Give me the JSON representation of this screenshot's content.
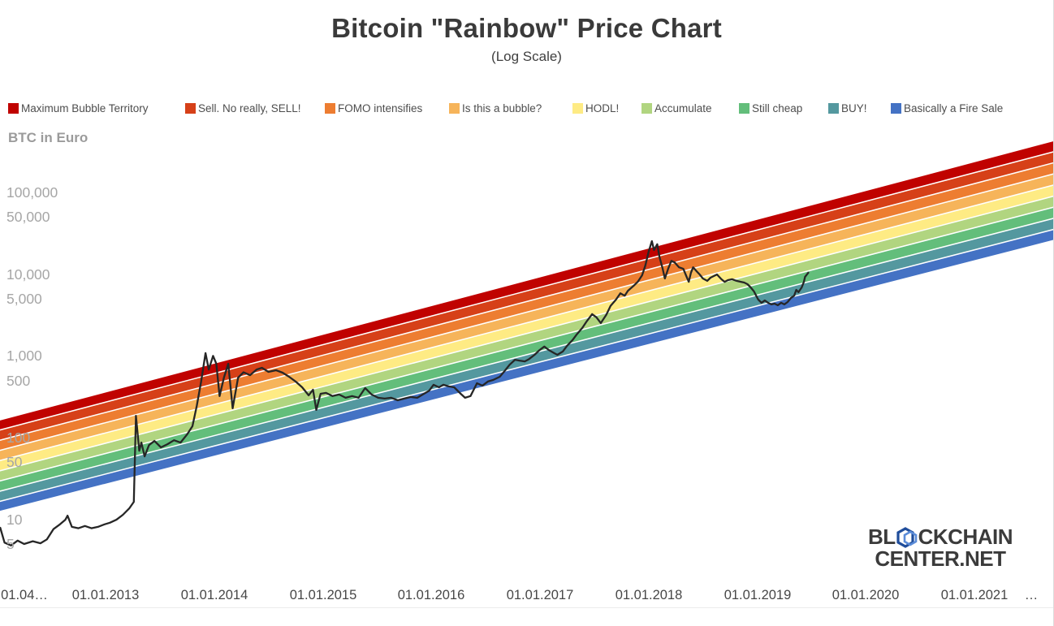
{
  "title": "Bitcoin \"Rainbow\" Price Chart",
  "subtitle": "(Log Scale)",
  "watermark": {
    "line1_pre": "BL",
    "line1_post": "CKCHAIN",
    "line2": "CENTER.NET"
  },
  "chart_data": {
    "type": "line",
    "title": "Bitcoin \"Rainbow\" Price Chart",
    "subtitle": "(Log Scale)",
    "ylabel": "BTC in Euro",
    "y_scale": "log",
    "grid": false,
    "legend_position": "top",
    "line_color": "#262626",
    "y_ticks": [
      {
        "label": "100,000",
        "value": 100000
      },
      {
        "label": "50,000",
        "value": 50000
      },
      {
        "label": "10,000",
        "value": 10000
      },
      {
        "label": "5,000",
        "value": 5000
      },
      {
        "label": "1,000",
        "value": 1000
      },
      {
        "label": "500",
        "value": 500
      },
      {
        "label": "100",
        "value": 100
      },
      {
        "label": "50",
        "value": 50
      },
      {
        "label": "10",
        "value": 10
      },
      {
        "label": "5",
        "value": 5
      }
    ],
    "x_ticks": [
      {
        "label": "01.04…",
        "t": 2012.25
      },
      {
        "label": "01.01.2013",
        "t": 2013
      },
      {
        "label": "01.01.2014",
        "t": 2014
      },
      {
        "label": "01.01.2015",
        "t": 2015
      },
      {
        "label": "01.01.2016",
        "t": 2016
      },
      {
        "label": "01.01.2017",
        "t": 2017
      },
      {
        "label": "01.01.2018",
        "t": 2018
      },
      {
        "label": "01.01.2019",
        "t": 2019
      },
      {
        "label": "01.01.2020",
        "t": 2020
      },
      {
        "label": "01.01.2021",
        "t": 2021
      },
      {
        "label": "…",
        "t": 2021.52
      }
    ],
    "bands": [
      {
        "label": "Maximum Bubble Territory",
        "color": "#c00200"
      },
      {
        "label": "Sell. No really, SELL!",
        "color": "#d64018"
      },
      {
        "label": "FOMO intensifies",
        "color": "#ed7d31"
      },
      {
        "label": "Is this a bubble?",
        "color": "#f6b45a"
      },
      {
        "label": "HODL!",
        "color": "#feeb84"
      },
      {
        "label": "Accumulate",
        "color": "#b1d580"
      },
      {
        "label": "Still cheap",
        "color": "#63be7b"
      },
      {
        "label": "BUY!",
        "color": "#54989f"
      },
      {
        "label": "Basically a Fire Sale",
        "color": "#4472c4"
      }
    ],
    "band_envelope": {
      "t_start": 2012.028,
      "t_end": 2021.732,
      "top_start_eur": 165,
      "top_end_eur": 430000,
      "bottom_start_eur": 12.5,
      "bottom_end_eur": 25800
    },
    "series_name": "BTC price in EUR",
    "series": [
      [
        2012.03,
        7.9
      ],
      [
        2012.07,
        5.2
      ],
      [
        2012.13,
        4.8
      ],
      [
        2012.19,
        5.5
      ],
      [
        2012.25,
        5.0
      ],
      [
        2012.33,
        5.4
      ],
      [
        2012.4,
        5.1
      ],
      [
        2012.46,
        5.7
      ],
      [
        2012.52,
        7.6
      ],
      [
        2012.58,
        8.7
      ],
      [
        2012.63,
        9.9
      ],
      [
        2012.65,
        11.1
      ],
      [
        2012.69,
        8.1
      ],
      [
        2012.75,
        7.8
      ],
      [
        2012.81,
        8.3
      ],
      [
        2012.87,
        7.8
      ],
      [
        2012.93,
        8.1
      ],
      [
        2012.99,
        8.7
      ],
      [
        2013.04,
        9.1
      ],
      [
        2013.1,
        9.9
      ],
      [
        2013.16,
        11.4
      ],
      [
        2013.22,
        13.7
      ],
      [
        2013.26,
        16.4
      ],
      [
        2013.28,
        185
      ],
      [
        2013.31,
        69
      ],
      [
        2013.33,
        87
      ],
      [
        2013.36,
        59
      ],
      [
        2013.4,
        81
      ],
      [
        2013.45,
        91
      ],
      [
        2013.51,
        76
      ],
      [
        2013.57,
        83
      ],
      [
        2013.63,
        93
      ],
      [
        2013.69,
        87
      ],
      [
        2013.75,
        109
      ],
      [
        2013.8,
        138
      ],
      [
        2013.84,
        244
      ],
      [
        2013.88,
        485
      ],
      [
        2013.92,
        1080
      ],
      [
        2013.95,
        680
      ],
      [
        2013.99,
        1000
      ],
      [
        2014.02,
        800
      ],
      [
        2014.05,
        322
      ],
      [
        2014.09,
        543
      ],
      [
        2014.13,
        800
      ],
      [
        2014.17,
        228
      ],
      [
        2014.22,
        540
      ],
      [
        2014.27,
        630
      ],
      [
        2014.33,
        580
      ],
      [
        2014.39,
        680
      ],
      [
        2014.44,
        715
      ],
      [
        2014.5,
        637
      ],
      [
        2014.57,
        667
      ],
      [
        2014.63,
        623
      ],
      [
        2014.69,
        556
      ],
      [
        2014.75,
        485
      ],
      [
        2014.81,
        413
      ],
      [
        2014.87,
        329
      ],
      [
        2014.91,
        385
      ],
      [
        2014.94,
        218
      ],
      [
        2014.98,
        344
      ],
      [
        2015.03,
        352
      ],
      [
        2015.09,
        322
      ],
      [
        2015.15,
        337
      ],
      [
        2015.21,
        307
      ],
      [
        2015.27,
        322
      ],
      [
        2015.33,
        307
      ],
      [
        2015.39,
        404
      ],
      [
        2015.45,
        337
      ],
      [
        2015.51,
        307
      ],
      [
        2015.57,
        300
      ],
      [
        2015.63,
        307
      ],
      [
        2015.69,
        286
      ],
      [
        2015.75,
        300
      ],
      [
        2015.81,
        314
      ],
      [
        2015.87,
        307
      ],
      [
        2015.92,
        337
      ],
      [
        2015.98,
        376
      ],
      [
        2016.02,
        443
      ],
      [
        2016.07,
        413
      ],
      [
        2016.11,
        443
      ],
      [
        2016.16,
        423
      ],
      [
        2016.21,
        413
      ],
      [
        2016.27,
        344
      ],
      [
        2016.31,
        307
      ],
      [
        2016.36,
        322
      ],
      [
        2016.42,
        463
      ],
      [
        2016.47,
        433
      ],
      [
        2016.52,
        485
      ],
      [
        2016.57,
        508
      ],
      [
        2016.63,
        556
      ],
      [
        2016.68,
        667
      ],
      [
        2016.72,
        780
      ],
      [
        2016.77,
        895
      ],
      [
        2016.81,
        875
      ],
      [
        2016.86,
        855
      ],
      [
        2016.9,
        915
      ],
      [
        2016.95,
        1030
      ],
      [
        2016.99,
        1160
      ],
      [
        2017.04,
        1300
      ],
      [
        2017.08,
        1180
      ],
      [
        2017.13,
        1080
      ],
      [
        2017.16,
        1030
      ],
      [
        2017.21,
        1130
      ],
      [
        2017.25,
        1330
      ],
      [
        2017.3,
        1560
      ],
      [
        2017.34,
        1840
      ],
      [
        2017.39,
        2200
      ],
      [
        2017.43,
        2640
      ],
      [
        2017.48,
        3240
      ],
      [
        2017.52,
        2960
      ],
      [
        2017.56,
        2520
      ],
      [
        2017.61,
        3170
      ],
      [
        2017.65,
        4080
      ],
      [
        2017.7,
        4880
      ],
      [
        2017.74,
        5830
      ],
      [
        2017.78,
        5440
      ],
      [
        2017.81,
        6260
      ],
      [
        2017.86,
        7150
      ],
      [
        2017.9,
        8040
      ],
      [
        2017.94,
        9670
      ],
      [
        2017.97,
        12700
      ],
      [
        2018.0,
        18800
      ],
      [
        2018.03,
        25300
      ],
      [
        2018.05,
        19700
      ],
      [
        2018.08,
        23200
      ],
      [
        2018.1,
        16300
      ],
      [
        2018.13,
        11600
      ],
      [
        2018.15,
        8830
      ],
      [
        2018.18,
        11600
      ],
      [
        2018.21,
        14500
      ],
      [
        2018.24,
        13900
      ],
      [
        2018.28,
        12100
      ],
      [
        2018.32,
        11600
      ],
      [
        2018.35,
        9250
      ],
      [
        2018.37,
        8040
      ],
      [
        2018.39,
        10400
      ],
      [
        2018.41,
        12100
      ],
      [
        2018.44,
        10900
      ],
      [
        2018.47,
        9900
      ],
      [
        2018.5,
        8830
      ],
      [
        2018.54,
        8260
      ],
      [
        2018.57,
        9040
      ],
      [
        2018.6,
        9460
      ],
      [
        2018.63,
        9890
      ],
      [
        2018.67,
        8650
      ],
      [
        2018.7,
        8040
      ],
      [
        2018.73,
        8450
      ],
      [
        2018.77,
        8650
      ],
      [
        2018.81,
        8260
      ],
      [
        2018.85,
        8040
      ],
      [
        2018.88,
        7890
      ],
      [
        2018.91,
        7530
      ],
      [
        2018.94,
        6870
      ],
      [
        2018.97,
        6140
      ],
      [
        2018.99,
        5440
      ],
      [
        2019.01,
        4880
      ],
      [
        2019.04,
        4460
      ],
      [
        2019.07,
        4770
      ],
      [
        2019.1,
        4460
      ],
      [
        2019.13,
        4260
      ],
      [
        2019.16,
        4350
      ],
      [
        2019.19,
        4160
      ],
      [
        2019.22,
        4460
      ],
      [
        2019.25,
        4260
      ],
      [
        2019.28,
        4550
      ],
      [
        2019.31,
        5100
      ],
      [
        2019.34,
        5440
      ],
      [
        2019.36,
        6410
      ],
      [
        2019.38,
        6000
      ],
      [
        2019.41,
        6870
      ],
      [
        2019.43,
        8040
      ],
      [
        2019.44,
        9250
      ],
      [
        2019.47,
        10400
      ]
    ]
  }
}
